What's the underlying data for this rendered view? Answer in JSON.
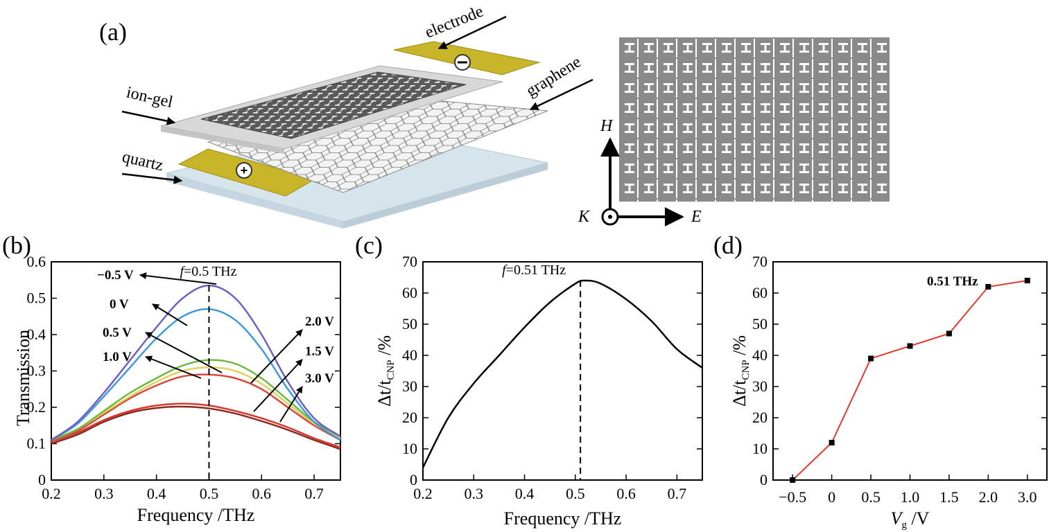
{
  "panel_labels": [
    "(a)",
    "(b)",
    "(c)",
    "(d)"
  ],
  "schematic": {
    "labels": [
      "electrode",
      "graphene",
      "ion-gel",
      "quartz"
    ],
    "electrode_colors": {
      "gold": "#c9b52a",
      "gold_dark": "#9d8b1c"
    },
    "axes": {
      "h": "H",
      "k": "K",
      "e": "E"
    }
  },
  "chart_data": [
    {
      "panel": "(b)",
      "type": "line",
      "title": "",
      "xlabel": "Frequency /THz",
      "ylabel": "Transmission",
      "xlim": [
        0.2,
        0.75
      ],
      "ylim": [
        0,
        0.6
      ],
      "xticks": [
        "0.2",
        "0.3",
        "0.4",
        "0.5",
        "0.6",
        "0.7"
      ],
      "yticks": [
        "0",
        "0.1",
        "0.2",
        "0.3",
        "0.4",
        "0.5",
        "0.6"
      ],
      "marker_line": {
        "x": 0.5,
        "label_italic": "f",
        "label_rest": "=0.5 THz"
      },
      "x": [
        0.2,
        0.25,
        0.3,
        0.35,
        0.4,
        0.45,
        0.5,
        0.55,
        0.6,
        0.65,
        0.7,
        0.75
      ],
      "series": [
        {
          "name": "−0.5 V",
          "color": "#6f5fbf",
          "values": [
            0.11,
            0.16,
            0.24,
            0.33,
            0.42,
            0.5,
            0.535,
            0.5,
            0.4,
            0.27,
            0.17,
            0.12
          ]
        },
        {
          "name": "0 V",
          "color": "#3f9ad6",
          "values": [
            0.11,
            0.155,
            0.23,
            0.31,
            0.39,
            0.45,
            0.47,
            0.44,
            0.36,
            0.25,
            0.16,
            0.11
          ]
        },
        {
          "name": "0.5 V",
          "color": "#6db83f",
          "values": [
            0.11,
            0.14,
            0.19,
            0.24,
            0.28,
            0.315,
            0.33,
            0.32,
            0.28,
            0.22,
            0.16,
            0.12
          ]
        },
        {
          "name": "1.0 V",
          "color": "#e0d060",
          "values": [
            0.11,
            0.14,
            0.185,
            0.23,
            0.27,
            0.3,
            0.31,
            0.3,
            0.265,
            0.21,
            0.155,
            0.115
          ]
        },
        {
          "name": "1.5 V",
          "color": "#d8473c",
          "values": [
            0.105,
            0.135,
            0.18,
            0.225,
            0.26,
            0.285,
            0.29,
            0.28,
            0.25,
            0.2,
            0.15,
            0.11
          ]
        },
        {
          "name": "2.0 V",
          "color": "#d63a2f",
          "values": [
            0.105,
            0.13,
            0.165,
            0.19,
            0.205,
            0.21,
            0.205,
            0.19,
            0.17,
            0.145,
            0.115,
            0.09
          ]
        },
        {
          "name": "3.0 V",
          "color": "#8a2a22",
          "values": [
            0.1,
            0.125,
            0.16,
            0.185,
            0.198,
            0.202,
            0.197,
            0.183,
            0.162,
            0.138,
            0.11,
            0.085
          ]
        }
      ],
      "annotations_left": [
        "−0.5 V",
        "0 V",
        "0.5 V",
        "1.0 V"
      ],
      "annotations_right": [
        "2.0 V",
        "1.5 V",
        "3.0 V"
      ]
    },
    {
      "panel": "(c)",
      "type": "line",
      "title": "",
      "xlabel": "Frequency /THz",
      "ylabel_main": "Δt/t",
      "ylabel_sub": "CNP",
      "ylabel_unit": " /%",
      "xlim": [
        0.2,
        0.75
      ],
      "ylim": [
        0,
        70
      ],
      "xticks": [
        "0.2",
        "0.3",
        "0.4",
        "0.5",
        "0.6",
        "0.7"
      ],
      "yticks": [
        "0",
        "10",
        "20",
        "30",
        "40",
        "50",
        "60",
        "70"
      ],
      "marker_line": {
        "x": 0.51,
        "label_italic": "f",
        "label_rest": "=0.51 THz"
      },
      "x": [
        0.2,
        0.25,
        0.3,
        0.35,
        0.4,
        0.45,
        0.5,
        0.52,
        0.55,
        0.6,
        0.65,
        0.7,
        0.75
      ],
      "series": [
        {
          "name": "Δt/tCNP",
          "color": "#000000",
          "values": [
            4,
            20,
            31,
            40,
            49,
            57,
            63,
            64,
            63,
            58,
            51,
            42,
            36
          ]
        }
      ]
    },
    {
      "panel": "(d)",
      "type": "line",
      "title": "",
      "xlabel_main": "V",
      "xlabel_sub": "g",
      "xlabel_unit": " /V",
      "ylabel_main": "Δt/t",
      "ylabel_sub": "CNP",
      "ylabel_unit": " /%",
      "categories": [
        "−0.5",
        "0",
        "0.5",
        "1.0",
        "1.5",
        "2.0",
        "3.0"
      ],
      "ylim": [
        0,
        70
      ],
      "yticks": [
        "0",
        "10",
        "20",
        "30",
        "40",
        "50",
        "60",
        "70"
      ],
      "annotation": "0.51 THz",
      "series": [
        {
          "name": "0.51 THz",
          "color": "#e03a2e",
          "values": [
            0,
            12,
            39,
            43,
            47,
            62,
            64
          ]
        }
      ]
    }
  ]
}
